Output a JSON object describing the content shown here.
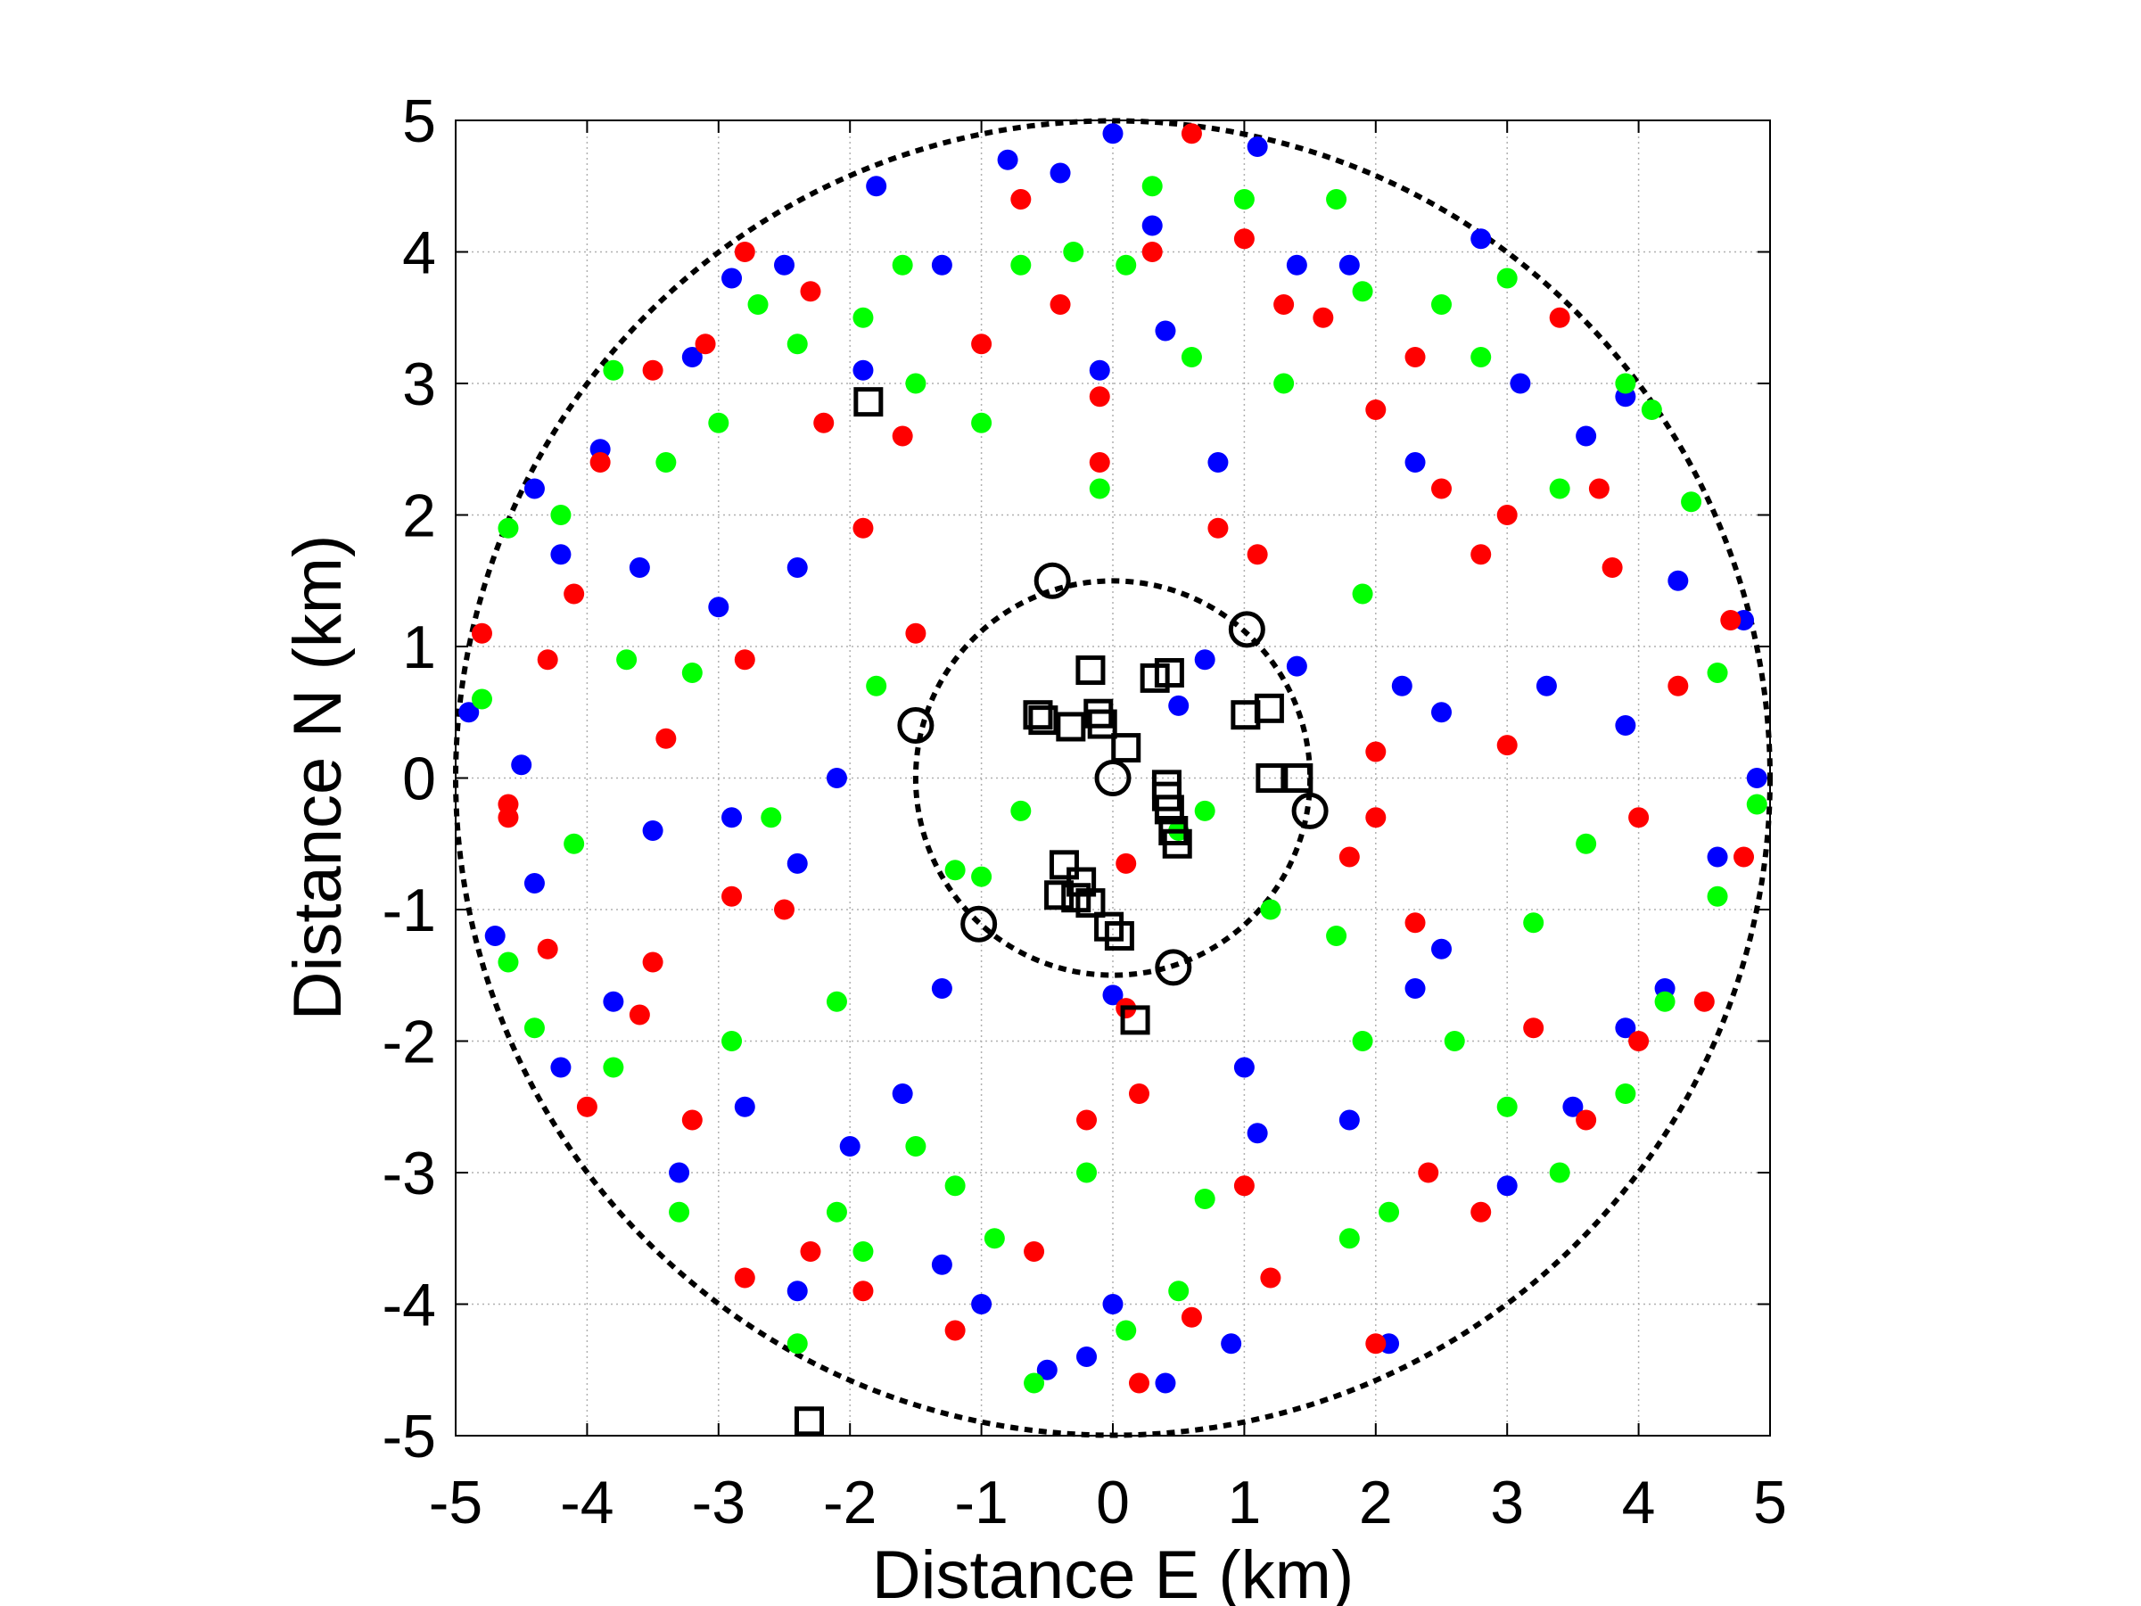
{
  "chart_data": {
    "type": "scatter",
    "title": "",
    "xlabel": "Distance E (km)",
    "ylabel": "Distance N (km)",
    "xlim": [
      -5,
      5
    ],
    "ylim": [
      -5,
      5
    ],
    "grid": true,
    "xticks": [
      "-5",
      "-4",
      "-3",
      "-2",
      "-1",
      "0",
      "1",
      "2",
      "3",
      "4",
      "5"
    ],
    "yticks": [
      "5",
      "4",
      "3",
      "2",
      "1",
      "0",
      "-1",
      "-2",
      "-3",
      "-4",
      "-5"
    ],
    "reference_circles": [
      {
        "name": "inner-ring",
        "radius": 1.5,
        "style": "dashed",
        "color": "#000000"
      },
      {
        "name": "outer-ring",
        "radius": 5,
        "style": "dashed",
        "color": "#000000"
      }
    ],
    "series": [
      {
        "name": "blue",
        "color": "#0000ff",
        "marker": "filled-circle",
        "points": [
          [
            -4.9,
            0.5
          ],
          [
            -4.7,
            -1.2
          ],
          [
            -4.4,
            2.2
          ],
          [
            -4.2,
            1.7
          ],
          [
            -3.9,
            2.5
          ],
          [
            -3.6,
            1.6
          ],
          [
            -3.2,
            3.2
          ],
          [
            -2.9,
            3.8
          ],
          [
            -2.5,
            3.9
          ],
          [
            -2.4,
            1.6
          ],
          [
            -1.9,
            3.1
          ],
          [
            -1.3,
            3.9
          ],
          [
            -0.8,
            4.7
          ],
          [
            -0.4,
            4.6
          ],
          [
            0,
            4.9
          ],
          [
            0.3,
            4.2
          ],
          [
            0.4,
            3.4
          ],
          [
            0.8,
            2.4
          ],
          [
            1.1,
            4.8
          ],
          [
            1.4,
            3.9
          ],
          [
            1.8,
            3.9
          ],
          [
            2.3,
            2.4
          ],
          [
            2.8,
            4.1
          ],
          [
            3.1,
            3.0
          ],
          [
            3.6,
            2.6
          ],
          [
            3.9,
            2.9
          ],
          [
            4.3,
            1.5
          ],
          [
            4.8,
            1.2
          ],
          [
            4.9,
            0
          ],
          [
            4.6,
            -0.6
          ],
          [
            4.2,
            -1.6
          ],
          [
            3.9,
            -1.9
          ],
          [
            3.5,
            -2.5
          ],
          [
            3.0,
            -3.1
          ],
          [
            2.5,
            -1.3
          ],
          [
            2.3,
            -1.6
          ],
          [
            1.0,
            -2.2
          ],
          [
            1.1,
            -2.7
          ],
          [
            0.9,
            -4.3
          ],
          [
            0.4,
            -4.6
          ],
          [
            0,
            -4.0
          ],
          [
            -0.2,
            -4.4
          ],
          [
            -0.5,
            -4.5
          ],
          [
            -1.0,
            -4.0
          ],
          [
            -1.3,
            -3.7
          ],
          [
            -1.6,
            -2.4
          ],
          [
            -1.3,
            -1.6
          ],
          [
            -2.0,
            -2.8
          ],
          [
            -2.4,
            -3.9
          ],
          [
            -2.8,
            -2.5
          ],
          [
            -3.3,
            -3.0
          ],
          [
            -3.8,
            -1.7
          ],
          [
            -4.2,
            -2.2
          ],
          [
            -4.4,
            -0.8
          ],
          [
            -3.5,
            -0.4
          ],
          [
            -2.9,
            -0.3
          ],
          [
            -3.0,
            1.3
          ],
          [
            0.7,
            0.9
          ],
          [
            0.5,
            0.55
          ],
          [
            1.4,
            0.85
          ],
          [
            0,
            -1.65
          ],
          [
            2.2,
            0.7
          ],
          [
            2.5,
            0.5
          ],
          [
            3.3,
            0.7
          ],
          [
            3.9,
            0.4
          ],
          [
            -2.4,
            -0.65
          ],
          [
            -2.1,
            0
          ],
          [
            -4.5,
            0.1
          ],
          [
            2.1,
            -4.3
          ],
          [
            1.8,
            -2.6
          ],
          [
            -1.8,
            4.5
          ],
          [
            -0.1,
            3.1
          ]
        ]
      },
      {
        "name": "red",
        "color": "#ff0000",
        "marker": "filled-circle",
        "points": [
          [
            -4.8,
            1.1
          ],
          [
            -4.6,
            -0.3
          ],
          [
            -4.3,
            0.9
          ],
          [
            -4.1,
            1.4
          ],
          [
            -3.9,
            2.4
          ],
          [
            -3.5,
            3.1
          ],
          [
            -3.1,
            3.3
          ],
          [
            -2.8,
            4.0
          ],
          [
            -2.3,
            3.7
          ],
          [
            -2.2,
            2.7
          ],
          [
            -1.9,
            1.9
          ],
          [
            -1.5,
            1.1
          ],
          [
            -1.6,
            2.6
          ],
          [
            -1.0,
            3.3
          ],
          [
            -0.7,
            4.4
          ],
          [
            -0.4,
            3.6
          ],
          [
            -0.1,
            2.9
          ],
          [
            0.3,
            4.0
          ],
          [
            0.6,
            4.9
          ],
          [
            1.0,
            4.1
          ],
          [
            1.3,
            3.6
          ],
          [
            1.6,
            3.5
          ],
          [
            1.1,
            1.7
          ],
          [
            0.8,
            1.9
          ],
          [
            2.0,
            2.8
          ],
          [
            2.3,
            3.2
          ],
          [
            2.5,
            2.2
          ],
          [
            2.8,
            1.7
          ],
          [
            3.0,
            2.0
          ],
          [
            3.4,
            3.5
          ],
          [
            3.7,
            2.2
          ],
          [
            3.8,
            1.6
          ],
          [
            4.3,
            0.7
          ],
          [
            4.7,
            1.2
          ],
          [
            4.8,
            -0.6
          ],
          [
            4.0,
            -0.3
          ],
          [
            4.5,
            -1.7
          ],
          [
            4.0,
            -2.0
          ],
          [
            3.6,
            -2.6
          ],
          [
            3.2,
            -1.9
          ],
          [
            2.8,
            -3.3
          ],
          [
            2.4,
            -3.0
          ],
          [
            2.0,
            -0.3
          ],
          [
            1.8,
            -0.6
          ],
          [
            2.3,
            -1.1
          ],
          [
            2.0,
            -4.3
          ],
          [
            1.2,
            -3.8
          ],
          [
            1.0,
            -3.1
          ],
          [
            0.6,
            -4.1
          ],
          [
            0.2,
            -4.6
          ],
          [
            0.2,
            -2.4
          ],
          [
            -0.2,
            -2.6
          ],
          [
            -0.6,
            -3.6
          ],
          [
            -1.2,
            -4.2
          ],
          [
            -1.9,
            -3.9
          ],
          [
            -2.3,
            -3.6
          ],
          [
            -2.8,
            -3.8
          ],
          [
            -3.2,
            -2.6
          ],
          [
            -3.6,
            -1.8
          ],
          [
            -3.5,
            -1.4
          ],
          [
            -4.0,
            -2.5
          ],
          [
            -4.3,
            -1.3
          ],
          [
            -4.6,
            -0.2
          ],
          [
            -2.5,
            -1.0
          ],
          [
            -2.9,
            -0.9
          ],
          [
            -3.4,
            0.3
          ],
          [
            -2.8,
            0.9
          ],
          [
            0.1,
            -0.65
          ],
          [
            2.0,
            0.2
          ],
          [
            3.0,
            0.25
          ],
          [
            0.1,
            -1.75
          ],
          [
            -0.1,
            2.4
          ]
        ]
      },
      {
        "name": "green",
        "color": "#00ff00",
        "marker": "filled-circle",
        "points": [
          [
            -4.8,
            0.6
          ],
          [
            -4.6,
            1.9
          ],
          [
            -4.2,
            2.0
          ],
          [
            -3.8,
            3.1
          ],
          [
            -3.4,
            2.4
          ],
          [
            -3.0,
            2.7
          ],
          [
            -2.7,
            3.6
          ],
          [
            -2.4,
            3.3
          ],
          [
            -1.9,
            3.5
          ],
          [
            -1.5,
            3.0
          ],
          [
            -1.6,
            3.9
          ],
          [
            -1.0,
            2.7
          ],
          [
            -0.7,
            3.9
          ],
          [
            -0.3,
            4.0
          ],
          [
            0.1,
            3.9
          ],
          [
            0.3,
            4.5
          ],
          [
            0.6,
            3.2
          ],
          [
            1.0,
            4.4
          ],
          [
            1.3,
            3.0
          ],
          [
            1.7,
            4.4
          ],
          [
            1.9,
            3.7
          ],
          [
            2.5,
            3.6
          ],
          [
            2.8,
            3.2
          ],
          [
            3.0,
            3.8
          ],
          [
            3.4,
            2.2
          ],
          [
            3.9,
            3.0
          ],
          [
            4.1,
            2.8
          ],
          [
            4.4,
            2.1
          ],
          [
            4.6,
            0.8
          ],
          [
            4.9,
            -0.2
          ],
          [
            4.6,
            -0.9
          ],
          [
            4.2,
            -1.7
          ],
          [
            3.9,
            -2.4
          ],
          [
            3.4,
            -3.0
          ],
          [
            3.0,
            -2.5
          ],
          [
            3.2,
            -1.1
          ],
          [
            2.6,
            -2.0
          ],
          [
            2.1,
            -3.3
          ],
          [
            1.8,
            -3.5
          ],
          [
            1.7,
            -1.2
          ],
          [
            1.9,
            -2.0
          ],
          [
            1.2,
            -1.0
          ],
          [
            0.5,
            -0.4
          ],
          [
            0.7,
            -3.2
          ],
          [
            0.5,
            -3.9
          ],
          [
            0.1,
            -4.2
          ],
          [
            -0.2,
            -3.0
          ],
          [
            -0.6,
            -4.6
          ],
          [
            -0.9,
            -3.5
          ],
          [
            -1.2,
            -3.1
          ],
          [
            -1.5,
            -2.8
          ],
          [
            -1.9,
            -3.6
          ],
          [
            -2.1,
            -3.3
          ],
          [
            -2.4,
            -4.3
          ],
          [
            -2.9,
            -2.0
          ],
          [
            -3.3,
            -3.3
          ],
          [
            -3.8,
            -2.2
          ],
          [
            -4.4,
            -1.9
          ],
          [
            -4.6,
            -1.4
          ],
          [
            -4.1,
            -0.5
          ],
          [
            -3.7,
            0.9
          ],
          [
            -3.2,
            0.8
          ],
          [
            -1.8,
            0.7
          ],
          [
            -1.2,
            -0.7
          ],
          [
            -1.0,
            -0.75
          ],
          [
            -2.6,
            -0.3
          ],
          [
            -2.1,
            -1.7
          ],
          [
            -0.1,
            2.2
          ],
          [
            1.9,
            1.4
          ],
          [
            3.6,
            -0.5
          ],
          [
            0.7,
            -0.25
          ],
          [
            -0.7,
            -0.25
          ]
        ]
      },
      {
        "name": "squares",
        "color": "#000000",
        "marker": "open-square",
        "points": [
          [
            -1.86,
            2.86
          ],
          [
            -0.17,
            0.82
          ],
          [
            0.32,
            0.76
          ],
          [
            0.43,
            0.8
          ],
          [
            -0.57,
            0.48
          ],
          [
            -0.53,
            0.44
          ],
          [
            -0.11,
            0.49
          ],
          [
            -0.08,
            0.41
          ],
          [
            -0.32,
            0.39
          ],
          [
            0.1,
            0.23
          ],
          [
            1.01,
            0.48
          ],
          [
            1.19,
            0.53
          ],
          [
            1.2,
            0
          ],
          [
            1.41,
            0
          ],
          [
            0.41,
            -0.05
          ],
          [
            0.41,
            -0.14
          ],
          [
            0.43,
            -0.24
          ],
          [
            0.46,
            -0.4
          ],
          [
            0.49,
            -0.5
          ],
          [
            -0.37,
            -0.66
          ],
          [
            -0.24,
            -0.79
          ],
          [
            -0.41,
            -0.89
          ],
          [
            -0.28,
            -0.91
          ],
          [
            -0.17,
            -0.95
          ],
          [
            -0.03,
            -1.13
          ],
          [
            0.05,
            -1.2
          ],
          [
            0.17,
            -1.84
          ],
          [
            -2.31,
            -4.89
          ]
        ]
      },
      {
        "name": "circles",
        "color": "#000000",
        "marker": "open-circle",
        "points": [
          [
            -0.46,
            1.5
          ],
          [
            1.02,
            1.13
          ],
          [
            -1.5,
            0.4
          ],
          [
            0,
            0
          ],
          [
            1.5,
            -0.25
          ],
          [
            -1.02,
            -1.11
          ],
          [
            0.46,
            -1.44
          ]
        ]
      }
    ]
  }
}
